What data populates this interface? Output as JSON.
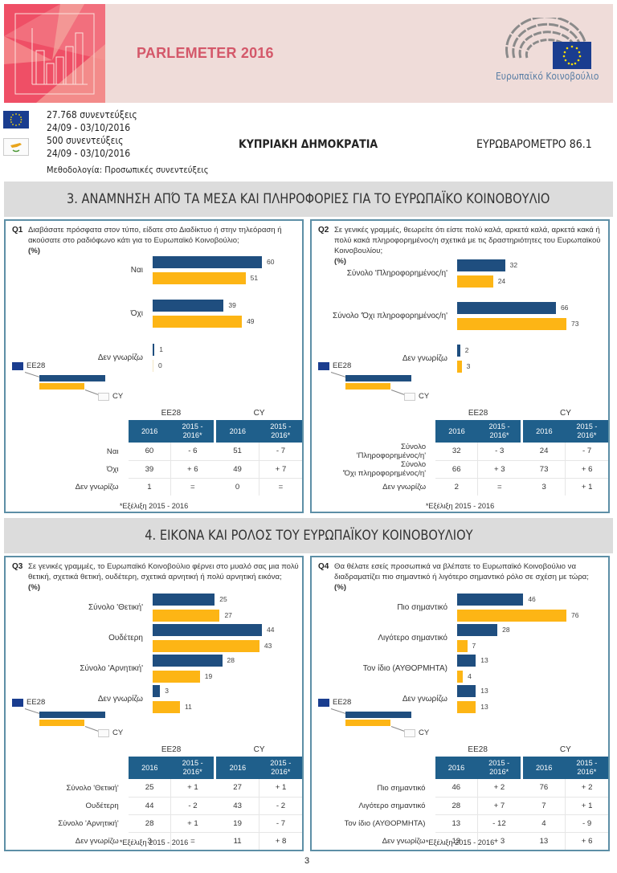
{
  "header": {
    "title": "PARLEMETER 2016",
    "institution": "Ευρωπαϊκό Κοινοβούλιο"
  },
  "survey": {
    "eu_interviews": "27.768 συνεντεύξεις",
    "eu_dates": "24/09 - 03/10/2016",
    "cy_interviews": "500 συνεντεύξεις",
    "cy_dates": "24/09 - 03/10/2016",
    "methodology": "Μεθοδολογία: Προσωπικές συνεντεύξεις",
    "country": "ΚΥΠΡΙΑΚΗ ΔΗΜΟΚΡΑΤΙΑ",
    "eurobarometer": "ΕΥΡΩΒΑΡΟΜΕΤΡΟ 86.1"
  },
  "sections": [
    {
      "title": "3. ΑΝΑΜΝΗΣΗ ΑΠΌ ΤΑ ΜΕΣΑ ΚΑΙ ΠΛΗΡΟΦΟΡΙΕΣ ΓΙΑ ΤΟ ΕΥΡΩΠΑΪΚΟ ΚΟΙΝΟΒΟΥΛΙΟ"
    },
    {
      "title": "4. ΕΙΚΟΝΑ ΚΑΙ ΡΟΛΟΣ ΤΟΥ ΕΥΡΩΠΑΪΚΟΥ ΚΟΙΝΟΒΟΥΛΙΟΥ"
    }
  ],
  "legend": {
    "eu": "EE28",
    "cy": "CY"
  },
  "table_headers": {
    "group_eu": "EE28",
    "group_cy": "CY",
    "col_year": "2016",
    "col_change_line1": "2015 -",
    "col_change_line2": "2016*"
  },
  "footnote": "*Εξέλιξη 2015 - 2016",
  "colors": {
    "eu": "#1f4e7f",
    "cy": "#fdb515",
    "table_header": "#1f5f8b",
    "panel_border": "#5d8fa6",
    "banner_title": "#d4586a"
  },
  "chart_data": [
    {
      "id": "Q1",
      "type": "bar",
      "orientation": "horizontal",
      "question": "Διαβάσατε πρόσφατα στον τύπο, είδατε στο Διαδίκτυο ή στην τηλεόραση ή ακούσατε στο ραδιόφωνο κάτι για το Ευρωπαϊκό Κοινοβούλιο;",
      "unit": "(%)",
      "categories": [
        "Ναι",
        "Όχι",
        "Δεν γνωρίζω"
      ],
      "table_labels": [
        "Ναι",
        "Όχι",
        "Δεν γνωρίζω"
      ],
      "series": [
        {
          "name": "EE28",
          "values": [
            60,
            39,
            1
          ],
          "change": [
            "- 6",
            "+ 6",
            "="
          ]
        },
        {
          "name": "CY",
          "values": [
            51,
            49,
            0
          ],
          "change": [
            "- 7",
            "+ 7",
            "="
          ]
        }
      ]
    },
    {
      "id": "Q2",
      "type": "bar",
      "orientation": "horizontal",
      "question": "Σε γενικές γραμμές, θεωρείτε ότι είστε πολύ καλά, αρκετά καλά, αρκετά κακά ή πολύ κακά πληροφορημένος/η σχετικά με τις δραστηριότητες του Ευρωπαϊκού Κοινοβουλίου;",
      "unit": "(%)",
      "categories": [
        "Σύνολο 'Πληροφορημένος/η'",
        "Σύνολο 'Όχι πληροφορημένος/η'",
        "Δεν γνωρίζω"
      ],
      "table_labels": [
        "Σύνολο\n'Πληροφορημένος/η'",
        "Σύνολο\n'Όχι πληροφορημένος/η'",
        "Δεν γνωρίζω"
      ],
      "series": [
        {
          "name": "EE28",
          "values": [
            32,
            66,
            2
          ],
          "change": [
            "- 3",
            "+ 3",
            "="
          ]
        },
        {
          "name": "CY",
          "values": [
            24,
            73,
            3
          ],
          "change": [
            "- 7",
            "+ 6",
            "+ 1"
          ]
        }
      ]
    },
    {
      "id": "Q3",
      "type": "bar",
      "orientation": "horizontal",
      "question": "Σε γενικές γραμμές, το Ευρωπαϊκό Κοινοβούλιο φέρνει στο μυαλό σας μια πολύ θετική, σχετικά θετική, ουδέτερη, σχετικά αρνητική ή πολύ αρνητική εικόνα;",
      "unit": "(%)",
      "categories": [
        "Σύνολο 'Θετική'",
        "Ουδέτερη",
        "Σύνολο 'Αρνητική'",
        "Δεν γνωρίζω"
      ],
      "table_labels": [
        "Σύνολο 'Θετική'",
        "Ουδέτερη",
        "Σύνολο 'Αρνητική'",
        "Δεν γνωρίζω"
      ],
      "series": [
        {
          "name": "EE28",
          "values": [
            25,
            44,
            28,
            3
          ],
          "change": [
            "+ 1",
            "- 2",
            "+ 1",
            "="
          ]
        },
        {
          "name": "CY",
          "values": [
            27,
            43,
            19,
            11
          ],
          "change": [
            "+ 1",
            "- 2",
            "- 7",
            "+ 8"
          ]
        }
      ]
    },
    {
      "id": "Q4",
      "type": "bar",
      "orientation": "horizontal",
      "question": "Θα θέλατε εσείς προσωπικά να βλέπατε το Ευρωπαϊκό Κοινοβούλιο να διαδραματίζει πιο σημαντικό ή λιγότερο σημαντικό ρόλο σε σχέση με τώρα;",
      "unit": "(%)",
      "categories": [
        "Πιο σημαντικό",
        "Λιγότερο σημαντικό",
        "Τον ίδιο (ΑΥΘΟΡΜΗΤΑ)",
        "Δεν γνωρίζω"
      ],
      "table_labels": [
        "Πιο σημαντικό",
        "Λιγότερο σημαντικό",
        "Τον ίδιο (ΑΥΘΟΡΜΗΤΑ)",
        "Δεν γνωρίζω"
      ],
      "series": [
        {
          "name": "EE28",
          "values": [
            46,
            28,
            13,
            13
          ],
          "change": [
            "+ 2",
            "+ 7",
            "- 12",
            "+ 3"
          ]
        },
        {
          "name": "CY",
          "values": [
            76,
            7,
            4,
            13
          ],
          "change": [
            "+ 2",
            "+ 1",
            "- 9",
            "+ 6"
          ]
        }
      ]
    }
  ],
  "page_number": "3"
}
